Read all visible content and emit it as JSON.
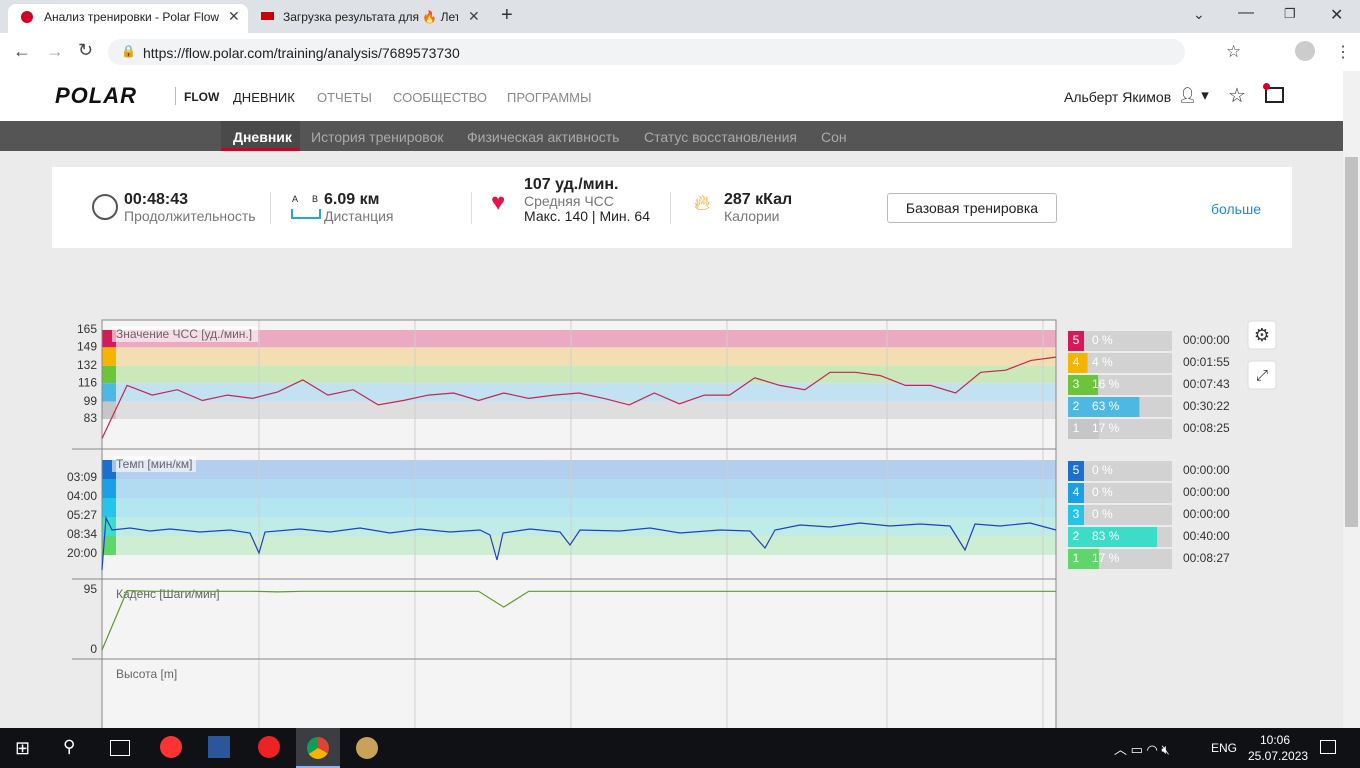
{
  "browser": {
    "tabs": [
      "Анализ тренировки - Polar Flow",
      "Загрузка результата для 🔥 Лет"
    ],
    "url": "https://flow.polar.com/training/analysis/7689573730"
  },
  "header": {
    "logo": "POLAR",
    "brand": "FLOW",
    "nav": [
      "ДНЕВНИК",
      "ОТЧЕТЫ",
      "СООБЩЕСТВО",
      "ПРОГРАММЫ"
    ],
    "user": "Альберт Якимов"
  },
  "subnav": [
    "Дневник",
    "История тренировок",
    "Физическая активность",
    "Статус восстановления",
    "Сон"
  ],
  "summary": {
    "duration": "00:48:43",
    "duration_label": "Продолжительность",
    "distance_markers": [
      "A",
      "B"
    ],
    "distance": "6.09 км",
    "distance_label": "Дистанция",
    "hr_avg": "107 уд./мин.",
    "hr_avg_label": "Средняя ЧСС",
    "hr_maxmin": "Макс. 140  |  Мин. 64",
    "calories": "287 кКал",
    "calories_label": "Калории",
    "button": "Базовая тренировка",
    "more": "больше"
  },
  "charts": {
    "hr": {
      "label": "Значение ЧСС [уд./мин.]",
      "ticks": [
        165,
        149,
        132,
        116,
        99,
        83
      ],
      "samples": [
        65,
        114,
        105,
        110,
        100,
        105,
        102,
        108,
        119,
        105,
        110,
        96,
        100,
        105,
        107,
        100,
        107,
        102,
        105,
        107,
        102,
        96,
        107,
        97,
        105,
        105,
        121,
        114,
        110,
        126,
        126,
        123,
        114,
        114,
        107,
        126,
        128,
        137,
        140
      ]
    },
    "pace": {
      "label": "Темп [мин/км]",
      "ticks": [
        "03:09",
        "04:00",
        "05:27",
        "08:34",
        "20:00"
      ]
    },
    "cadence": {
      "label": "Каденс [Шаги/мин]",
      "ticks": [
        95,
        0
      ],
      "samples": [
        0,
        94,
        93,
        93,
        93,
        93,
        93,
        92,
        93,
        93,
        93,
        93,
        93,
        93,
        93,
        93,
        68,
        93,
        93,
        93,
        93,
        93,
        93,
        93,
        93,
        93,
        93,
        93,
        93,
        93,
        93,
        93,
        93,
        93,
        93,
        93,
        93,
        93,
        93
      ]
    },
    "altitude": {
      "label": "Высота [m]"
    }
  },
  "zones": {
    "hr": {
      "numbers": [
        "5",
        "4",
        "3",
        "2",
        "1"
      ],
      "values": [
        0,
        4,
        16,
        63,
        17
      ],
      "value_labels": [
        "0 %",
        "4 %",
        "16 %",
        "63 %",
        "17 %"
      ],
      "times": [
        "00:00:00",
        "00:01:55",
        "00:07:43",
        "00:30:22",
        "00:08:25"
      ]
    },
    "pace": {
      "numbers": [
        "5",
        "4",
        "3",
        "2",
        "1"
      ],
      "values": [
        0,
        0,
        0,
        83,
        17
      ],
      "value_labels": [
        "0 %",
        "0 %",
        "0 %",
        "83 %",
        "17 %"
      ],
      "times": [
        "00:00:00",
        "00:00:00",
        "00:00:00",
        "00:40:00",
        "00:08:27"
      ]
    }
  },
  "taskbar": {
    "lang": "ENG",
    "time": "10:06",
    "date": "25.07.2023"
  }
}
